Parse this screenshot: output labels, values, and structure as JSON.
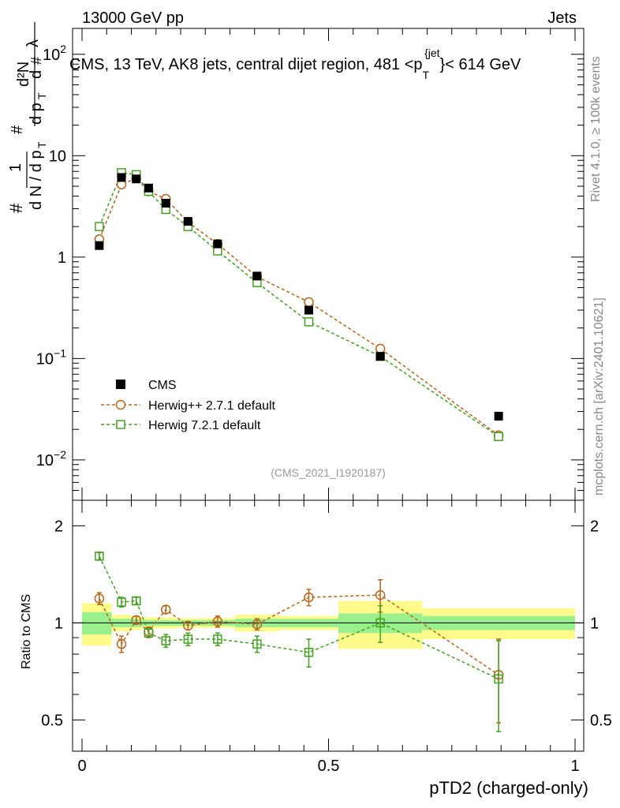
{
  "header": {
    "left": "13000 GeV pp",
    "right": "Jets"
  },
  "side_labels": {
    "rivet": "Rivet 4.1.0, ≥ 100k events",
    "mcplots": "mcplots.cern.ch [arXiv:2401.10621]"
  },
  "watermark": "(CMS_2021_I1920187)",
  "chart_data": {
    "type": "scatter",
    "title": "CMS, 13 TeV, AK8 jets, central dijet region, 481 < p_T^{jet} < 614 GeV",
    "title_parts": {
      "pre": "CMS, 13 TeV, AK8 jets, central dijet region, 481 <p",
      "sub": "T",
      "sup": "{jet",
      "post": "}< 614 GeV"
    },
    "xlabel": "pTD2 (charged-only)",
    "ylabel_main": "1/N dN/dp_T d^2N/dp_T dλ",
    "ylabel_ratio": "Ratio to CMS",
    "xlim": [
      0,
      1
    ],
    "ylim_main": [
      0.004,
      180
    ],
    "ylim_ratio": [
      0.4,
      2.4
    ],
    "x_ticks": [
      "0",
      "0.5",
      "1"
    ],
    "x_tick_values": [
      0,
      0.5,
      1
    ],
    "y_ticks_main": [
      {
        "value": 0.01,
        "base": "10",
        "exp": "−2"
      },
      {
        "value": 0.1,
        "base": "10",
        "exp": "−1"
      },
      {
        "value": 1,
        "base": "1",
        "exp": ""
      },
      {
        "value": 10,
        "base": "10",
        "exp": ""
      },
      {
        "value": 100,
        "base": "10",
        "exp": "2"
      }
    ],
    "y_ticks_ratio": [
      {
        "value": 0.5,
        "label": "0.5"
      },
      {
        "value": 1,
        "label": "1"
      },
      {
        "value": 2,
        "label": "2"
      }
    ],
    "bin_edges": [
      0,
      0.06,
      0.1,
      0.12,
      0.15,
      0.19,
      0.25,
      0.31,
      0.4,
      0.52,
      0.69,
      1.0
    ],
    "x": [
      0.035,
      0.08,
      0.11,
      0.135,
      0.17,
      0.215,
      0.275,
      0.355,
      0.46,
      0.605,
      0.845
    ],
    "series": [
      {
        "name": "CMS",
        "color": "#000000",
        "marker": "filled-square",
        "values": [
          1.3,
          6.1,
          5.9,
          4.8,
          3.4,
          2.25,
          1.35,
          0.65,
          0.3,
          0.105,
          0.027
        ],
        "band_yellow": [
          0.15,
          0.06,
          0.05,
          0.04,
          0.04,
          0.035,
          0.035,
          0.06,
          0.05,
          0.17,
          0.11
        ],
        "band_green": [
          0.08,
          0.03,
          0.03,
          0.02,
          0.02,
          0.02,
          0.02,
          0.03,
          0.03,
          0.07,
          0.05
        ]
      },
      {
        "name": "Herwig++ 2.7.1 default",
        "color": "#b5651d",
        "marker": "open-circle",
        "values": [
          1.5,
          5.2,
          6.0,
          4.45,
          3.75,
          2.2,
          1.35,
          0.64,
          0.36,
          0.125,
          0.0175
        ],
        "ratio": [
          1.19,
          0.86,
          1.02,
          0.94,
          1.1,
          0.98,
          1.01,
          0.99,
          1.2,
          1.22,
          0.69
        ],
        "ratio_err": [
          0.05,
          0.05,
          0.03,
          0.03,
          0.03,
          0.03,
          0.04,
          0.04,
          0.07,
          0.14,
          0.2
        ]
      },
      {
        "name": "Herwig 7.2.1 default",
        "color": "#44a022",
        "marker": "open-square",
        "values": [
          2.0,
          6.8,
          6.5,
          4.45,
          2.95,
          2.0,
          1.15,
          0.56,
          0.23,
          0.105,
          0.017
        ],
        "ratio": [
          1.61,
          1.16,
          1.17,
          0.93,
          0.88,
          0.89,
          0.89,
          0.86,
          0.81,
          1.0,
          0.67
        ],
        "ratio_err": [
          0.04,
          0.04,
          0.03,
          0.03,
          0.04,
          0.04,
          0.04,
          0.05,
          0.08,
          0.13,
          0.21
        ]
      }
    ],
    "legend_position": "lower-left"
  }
}
